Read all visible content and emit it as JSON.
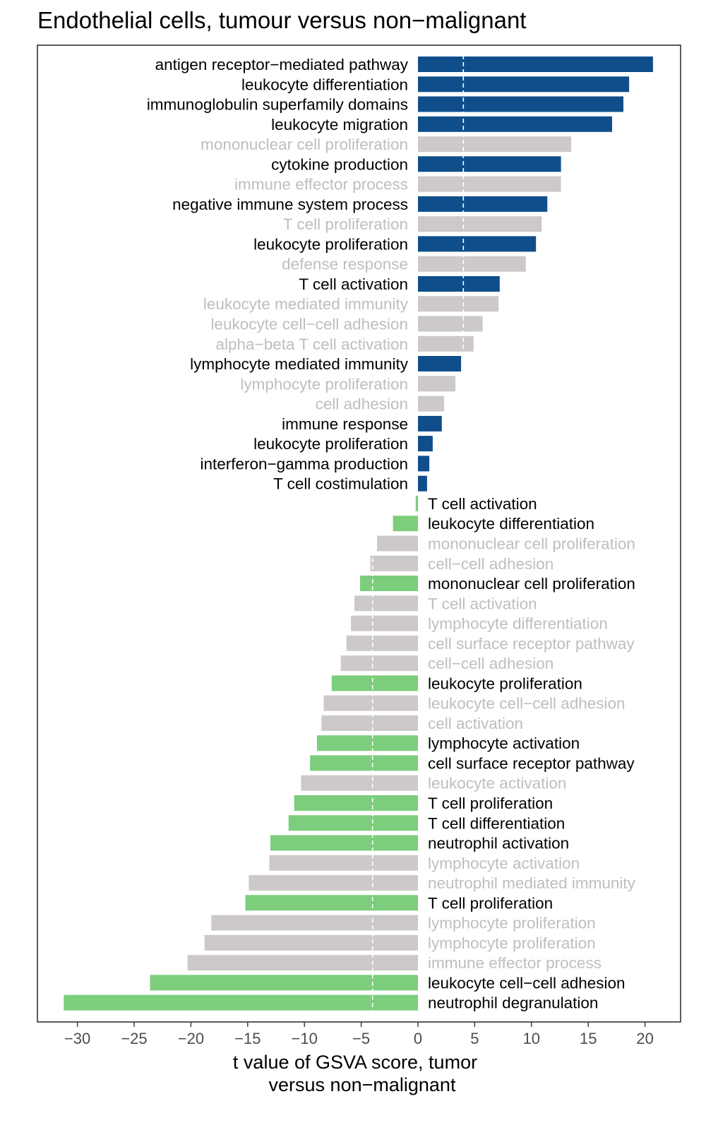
{
  "chart_data": {
    "type": "bar",
    "orientation": "horizontal",
    "title": "Endothelial cells, tumour versus non−malignant",
    "xlabel_lines": [
      "t value of GSVA score, tumor",
      "versus non−malignant"
    ],
    "xlim": [
      -31.5,
      22.5
    ],
    "xticks": [
      -30,
      -25,
      -20,
      -15,
      -10,
      -5,
      0,
      5,
      10,
      15,
      20
    ],
    "xtick_labels": [
      "−30",
      "−25",
      "−20",
      "−15",
      "−10",
      "−5",
      "0",
      "5",
      "10",
      "15",
      "20"
    ],
    "thresholds": [
      4,
      -4
    ],
    "colors": {
      "up": "#104E8B",
      "down": "#7CCD7C",
      "nonsig_bar": "#CDC9C9",
      "nonsig_text": "#BEBEBE",
      "sig_text": "#000000"
    },
    "bars": [
      {
        "label": "antigen receptor−mediated pathway",
        "value": 20.7,
        "sig": true
      },
      {
        "label": "leukocyte differentiation",
        "value": 18.6,
        "sig": true
      },
      {
        "label": "immunoglobulin superfamily domains",
        "value": 18.1,
        "sig": true
      },
      {
        "label": "leukocyte migration",
        "value": 17.1,
        "sig": true
      },
      {
        "label": "mononuclear cell proliferation",
        "value": 13.5,
        "sig": false
      },
      {
        "label": "cytokine production",
        "value": 12.6,
        "sig": true
      },
      {
        "label": "immune effector process",
        "value": 12.6,
        "sig": false
      },
      {
        "label": "negative immune system process",
        "value": 11.4,
        "sig": true
      },
      {
        "label": "T cell proliferation",
        "value": 10.9,
        "sig": false
      },
      {
        "label": "leukocyte proliferation",
        "value": 10.4,
        "sig": true
      },
      {
        "label": "defense response",
        "value": 9.5,
        "sig": false
      },
      {
        "label": "T cell activation",
        "value": 7.2,
        "sig": true
      },
      {
        "label": "leukocyte mediated immunity",
        "value": 7.1,
        "sig": false
      },
      {
        "label": "leukocyte cell−cell adhesion",
        "value": 5.7,
        "sig": false
      },
      {
        "label": "alpha−beta T cell activation",
        "value": 4.9,
        "sig": false
      },
      {
        "label": "lymphocyte mediated immunity",
        "value": 3.8,
        "sig": true
      },
      {
        "label": "lymphocyte proliferation",
        "value": 3.3,
        "sig": false
      },
      {
        "label": "cell adhesion",
        "value": 2.3,
        "sig": false
      },
      {
        "label": "immune response",
        "value": 2.1,
        "sig": true
      },
      {
        "label": "leukocyte proliferation",
        "value": 1.3,
        "sig": true
      },
      {
        "label": "interferon−gamma production",
        "value": 1.0,
        "sig": true
      },
      {
        "label": "T cell costimulation",
        "value": 0.8,
        "sig": true
      },
      {
        "label": "T cell activation",
        "value": -0.2,
        "sig": true
      },
      {
        "label": "leukocyte differentiation",
        "value": -2.2,
        "sig": true
      },
      {
        "label": "mononuclear cell proliferation",
        "value": -3.6,
        "sig": false
      },
      {
        "label": "cell−cell adhesion",
        "value": -4.2,
        "sig": false
      },
      {
        "label": "mononuclear cell proliferation",
        "value": -5.1,
        "sig": true
      },
      {
        "label": "T cell activation",
        "value": -5.6,
        "sig": false
      },
      {
        "label": "lymphocyte differentiation",
        "value": -5.9,
        "sig": false
      },
      {
        "label": "cell surface receptor pathway",
        "value": -6.3,
        "sig": false
      },
      {
        "label": "cell−cell adhesion",
        "value": -6.8,
        "sig": false
      },
      {
        "label": "leukocyte proliferation",
        "value": -7.6,
        "sig": true
      },
      {
        "label": "leukocyte cell−cell adhesion",
        "value": -8.3,
        "sig": false
      },
      {
        "label": "cell activation",
        "value": -8.5,
        "sig": false
      },
      {
        "label": "lymphocyte activation",
        "value": -8.9,
        "sig": true
      },
      {
        "label": "cell surface receptor pathway",
        "value": -9.5,
        "sig": true
      },
      {
        "label": "leukocyte activation",
        "value": -10.3,
        "sig": false
      },
      {
        "label": "T cell proliferation",
        "value": -10.9,
        "sig": true
      },
      {
        "label": "T cell differentiation",
        "value": -11.4,
        "sig": true
      },
      {
        "label": "neutrophil activation",
        "value": -13.0,
        "sig": true
      },
      {
        "label": "lymphocyte activation",
        "value": -13.1,
        "sig": false
      },
      {
        "label": "neutrophil mediated immunity",
        "value": -14.9,
        "sig": false
      },
      {
        "label": "T cell proliferation",
        "value": -15.2,
        "sig": true
      },
      {
        "label": "lymphocyte proliferation",
        "value": -18.2,
        "sig": false
      },
      {
        "label": "lymphocyte proliferation",
        "value": -18.8,
        "sig": false
      },
      {
        "label": "immune effector process",
        "value": -20.3,
        "sig": false
      },
      {
        "label": "leukocyte cell−cell adhesion",
        "value": -23.6,
        "sig": true
      },
      {
        "label": "neutrophil degranulation",
        "value": -31.2,
        "sig": true
      }
    ]
  }
}
